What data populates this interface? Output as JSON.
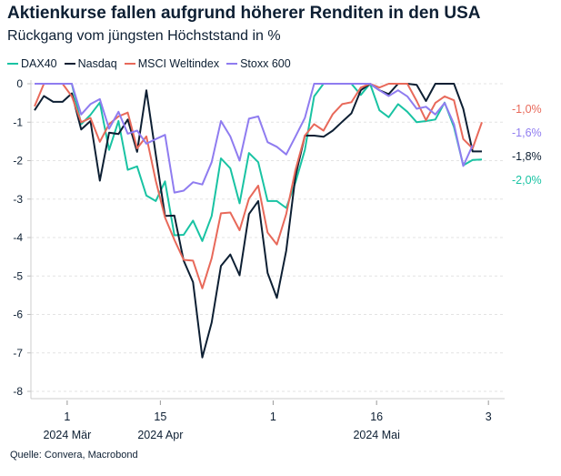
{
  "chart_data": {
    "type": "line",
    "title": "Aktienkurse fallen aufgrund höherer Renditen in den USA",
    "subtitle": "Rückgang vom jüngsten Höchststand in %",
    "source": "Quelle: Convera, Macrobond",
    "xlabel": "",
    "ylabel": "",
    "x_unit": "trading-day index",
    "xlim": [
      -0.5,
      50.5
    ],
    "ylim": [
      -8,
      0
    ],
    "yticks": [
      0,
      -1,
      -2,
      -3,
      -4,
      -5,
      -6,
      -7,
      -8
    ],
    "grid": true,
    "legend_position": "top-left",
    "xticks": [
      {
        "pos": 3.5,
        "label": "1",
        "group": "2024 Mär"
      },
      {
        "pos": 13.5,
        "label": "15",
        "group": "2024 Apr"
      },
      {
        "pos": 25.6,
        "label": "1",
        "group": ""
      },
      {
        "pos": 36.7,
        "label": "16",
        "group": "2024 Mai"
      },
      {
        "pos": 48.7,
        "label": "3",
        "group": ""
      }
    ],
    "series": [
      {
        "name": "DAX40",
        "color": "#19c3a3",
        "end_label": "-2,0%",
        "values": [
          0,
          0,
          0,
          0,
          0,
          -1.05,
          -0.81,
          -0.49,
          -1.72,
          -0.97,
          -2.24,
          -2.15,
          -2.91,
          -3.05,
          -2.54,
          -3.94,
          -3.93,
          -3.56,
          -4.09,
          -3.44,
          -1.94,
          -2.2,
          -3.11,
          -1.8,
          -2.04,
          -3.05,
          -3.05,
          -3.23,
          -2.56,
          -1.72,
          -0.33,
          0,
          0,
          0,
          0,
          -0.29,
          0,
          -0.69,
          -0.87,
          -0.53,
          -0.73,
          -1.0,
          -0.97,
          -0.93,
          -0.49,
          -1.13,
          -2.12,
          -1.98,
          -1.97
        ]
      },
      {
        "name": "Nasdaq",
        "color": "#0d1f33",
        "end_label": "-1,8%",
        "values": [
          -0.69,
          -0.32,
          -0.47,
          -0.47,
          -0.25,
          -1.19,
          -0.97,
          -2.52,
          -1.27,
          -1.31,
          -0.93,
          -1.77,
          -0.17,
          -1.84,
          -3.44,
          -3.43,
          -4.6,
          -5.16,
          -7.12,
          -6.21,
          -4.74,
          -4.44,
          -4.98,
          -3.39,
          -3.05,
          -4.92,
          -5.57,
          -4.34,
          -2.4,
          -1.35,
          -1.35,
          -1.38,
          -1.22,
          -0.99,
          -0.77,
          -0.17,
          0,
          -0.17,
          -0.27,
          0,
          0,
          -0.03,
          -0.45,
          0,
          0,
          0,
          -0.65,
          -1.76,
          -1.76
        ]
      },
      {
        "name": "MSCI Weltindex",
        "color": "#e8695a",
        "end_label": "-1,0%",
        "values": [
          -0.59,
          0,
          0,
          0,
          -0.33,
          -1.0,
          -0.89,
          -1.51,
          -1.05,
          -0.85,
          -0.75,
          -1.68,
          -1.37,
          -2.52,
          -3.48,
          -4.06,
          -4.58,
          -4.6,
          -5.32,
          -4.54,
          -3.37,
          -3.35,
          -3.81,
          -2.99,
          -2.65,
          -3.87,
          -4.18,
          -3.39,
          -2.24,
          -1.35,
          -1.05,
          -1.22,
          -0.79,
          -0.53,
          -0.48,
          -0.1,
          0,
          -0.1,
          0,
          0,
          0,
          -0.45,
          -0.95,
          -0.5,
          -0.33,
          -0.43,
          -1.44,
          -1.68,
          -1.0
        ]
      },
      {
        "name": "Stoxx 600",
        "color": "#8f7cf0",
        "end_label": "-1,6%",
        "values": [
          0,
          0,
          0,
          0,
          0,
          -0.8,
          -0.53,
          -0.4,
          -1.17,
          -0.73,
          -1.3,
          -1.22,
          -1.56,
          -1.44,
          -1.33,
          -2.83,
          -2.78,
          -2.56,
          -2.62,
          -2.04,
          -0.97,
          -1.37,
          -2.0,
          -0.91,
          -0.85,
          -1.52,
          -1.64,
          -1.84,
          -1.37,
          -0.89,
          0,
          0,
          0,
          0,
          0,
          0,
          0,
          -0.17,
          -0.32,
          -0.17,
          -0.33,
          -0.65,
          -0.6,
          -0.8,
          -0.5,
          -1.05,
          -2.14,
          -1.6
        ]
      }
    ]
  }
}
